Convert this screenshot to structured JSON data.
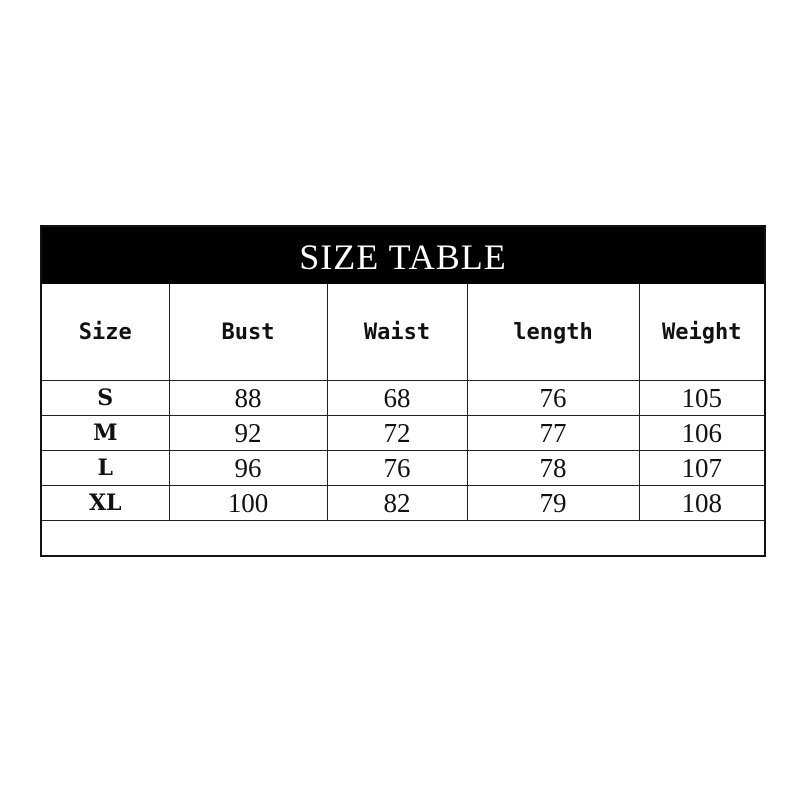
{
  "title": "SIZE TABLE",
  "columns": [
    "Size",
    "Bust",
    "Waist",
    "length",
    "Weight"
  ],
  "rows": [
    [
      "S",
      "88",
      "68",
      "76",
      "105"
    ],
    [
      "M",
      "92",
      "72",
      "77",
      "106"
    ],
    [
      "L",
      "96",
      "76",
      "78",
      "107"
    ],
    [
      "XL",
      "100",
      "82",
      "79",
      "108"
    ]
  ]
}
